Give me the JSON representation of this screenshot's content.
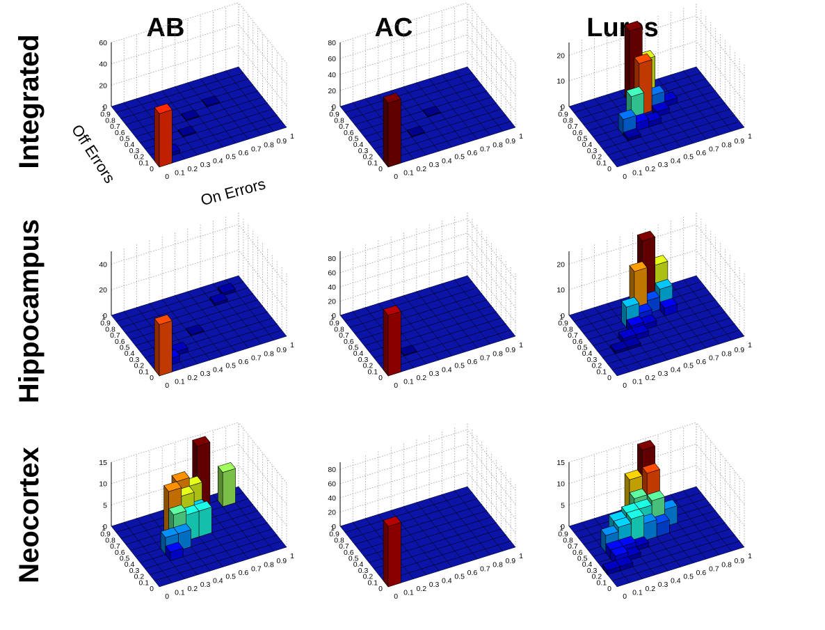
{
  "figure": {
    "column_labels": [
      "AB",
      "AC",
      "Lures"
    ],
    "row_labels": [
      "Integrated",
      "Hippocampus",
      "Neocortex"
    ],
    "x_axis_title": "On Errors",
    "y_axis_title": "Off Errors"
  },
  "chart_data": [
    {
      "type": "bar3d",
      "row": "Integrated",
      "column": "AB",
      "ticks_x": [
        "0",
        "0.1",
        "0.2",
        "0.3",
        "0.4",
        "0.5",
        "0.6",
        "0.7",
        "0.8",
        "0.9",
        "1"
      ],
      "ticks_y": [
        "0",
        "0.1",
        "0.2",
        "0.3",
        "0.4",
        "0.5",
        "0.6",
        "0.7",
        "0.8",
        "0.9",
        "1"
      ],
      "z_ticks": [
        "0",
        "20",
        "40",
        "60"
      ],
      "zlim": [
        0,
        60
      ],
      "bars": [
        {
          "x": 0,
          "y": 0,
          "z": 50
        },
        {
          "x": 1,
          "y": 1,
          "z": 3
        },
        {
          "x": 3,
          "y": 3,
          "z": 1
        },
        {
          "x": 4,
          "y": 5,
          "z": 1
        },
        {
          "x": 6,
          "y": 6,
          "z": 1
        }
      ]
    },
    {
      "type": "bar3d",
      "row": "Integrated",
      "column": "AC",
      "ticks_x": [
        "0",
        "0.1",
        "0.2",
        "0.3",
        "0.4",
        "0.5",
        "0.6",
        "0.7",
        "0.8",
        "0.9",
        "1"
      ],
      "ticks_y": [
        "0",
        "0.1",
        "0.2",
        "0.3",
        "0.4",
        "0.5",
        "0.6",
        "0.7",
        "0.8",
        "0.9",
        "1"
      ],
      "z_ticks": [
        "0",
        "20",
        "40",
        "60",
        "80"
      ],
      "zlim": [
        0,
        80
      ],
      "bars": [
        {
          "x": 0,
          "y": 0,
          "z": 80
        },
        {
          "x": 3,
          "y": 3,
          "z": 1
        },
        {
          "x": 5,
          "y": 5,
          "z": 1
        }
      ]
    },
    {
      "type": "bar3d",
      "row": "Integrated",
      "column": "Lures",
      "ticks_x": [
        "0",
        "0.1",
        "0.2",
        "0.3",
        "0.4",
        "0.5",
        "0.6",
        "0.7",
        "0.8",
        "0.9",
        "1"
      ],
      "ticks_y": [
        "0",
        "0.1",
        "0.2",
        "0.3",
        "0.4",
        "0.5",
        "0.6",
        "0.7",
        "0.8",
        "0.9",
        "1"
      ],
      "z_ticks": [
        "0",
        "10",
        "20"
      ],
      "zlim": [
        0,
        25
      ],
      "bars": [
        {
          "x": 4,
          "y": 8,
          "z": 28
        },
        {
          "x": 4,
          "y": 6,
          "z": 20
        },
        {
          "x": 5,
          "y": 8,
          "z": 15
        },
        {
          "x": 3,
          "y": 5,
          "z": 11
        },
        {
          "x": 5,
          "y": 6,
          "z": 6
        },
        {
          "x": 2,
          "y": 4,
          "z": 6
        },
        {
          "x": 3,
          "y": 4,
          "z": 3
        },
        {
          "x": 4,
          "y": 4,
          "z": 2
        },
        {
          "x": 5,
          "y": 5,
          "z": 2
        },
        {
          "x": 6,
          "y": 6,
          "z": 2
        },
        {
          "x": 2,
          "y": 3,
          "z": 1
        }
      ]
    },
    {
      "type": "bar3d",
      "row": "Hippocampus",
      "column": "AB",
      "ticks_x": [
        "0",
        "0.1",
        "0.2",
        "0.3",
        "0.4",
        "0.5",
        "0.6",
        "0.7",
        "0.8",
        "0.9",
        "1"
      ],
      "ticks_y": [
        "0",
        "0.1",
        "0.2",
        "0.3",
        "0.4",
        "0.5",
        "0.6",
        "0.7",
        "0.8",
        "0.9",
        "1"
      ],
      "z_ticks": [
        "0",
        "20",
        "40"
      ],
      "zlim": [
        0,
        50
      ],
      "bars": [
        {
          "x": 0,
          "y": 0,
          "z": 40
        },
        {
          "x": 1,
          "y": 1,
          "z": 5
        },
        {
          "x": 1,
          "y": 2,
          "z": 3
        },
        {
          "x": 2,
          "y": 2,
          "z": 3
        },
        {
          "x": 4,
          "y": 4,
          "z": 1
        },
        {
          "x": 7,
          "y": 7,
          "z": 2
        },
        {
          "x": 8,
          "y": 8,
          "z": 2
        }
      ]
    },
    {
      "type": "bar3d",
      "row": "Hippocampus",
      "column": "AC",
      "ticks_x": [
        "0",
        "0.1",
        "0.2",
        "0.3",
        "0.4",
        "0.5",
        "0.6",
        "0.7",
        "0.8",
        "0.9",
        "1"
      ],
      "ticks_y": [
        "0",
        "0.1",
        "0.2",
        "0.3",
        "0.4",
        "0.5",
        "0.6",
        "0.7",
        "0.8",
        "0.9",
        "1"
      ],
      "z_ticks": [
        "0",
        "20",
        "40",
        "60",
        "80"
      ],
      "zlim": [
        0,
        90
      ],
      "bars": [
        {
          "x": 0,
          "y": 0,
          "z": 85
        },
        {
          "x": 2,
          "y": 2,
          "z": 1
        }
      ]
    },
    {
      "type": "bar3d",
      "row": "Hippocampus",
      "column": "Lures",
      "ticks_x": [
        "0",
        "0.1",
        "0.2",
        "0.3",
        "0.4",
        "0.5",
        "0.6",
        "0.7",
        "0.8",
        "0.9",
        "1"
      ],
      "ticks_y": [
        "0",
        "0.1",
        "0.2",
        "0.3",
        "0.4",
        "0.5",
        "0.6",
        "0.7",
        "0.8",
        "0.9",
        "1"
      ],
      "z_ticks": [
        "0",
        "10",
        "20"
      ],
      "zlim": [
        0,
        25
      ],
      "bars": [
        {
          "x": 5,
          "y": 8,
          "z": 26
        },
        {
          "x": 4,
          "y": 7,
          "z": 18
        },
        {
          "x": 6,
          "y": 8,
          "z": 15
        },
        {
          "x": 3,
          "y": 6,
          "z": 8
        },
        {
          "x": 6,
          "y": 7,
          "z": 8
        },
        {
          "x": 4,
          "y": 6,
          "z": 4
        },
        {
          "x": 5,
          "y": 7,
          "z": 5
        },
        {
          "x": 3,
          "y": 5,
          "z": 3
        },
        {
          "x": 4,
          "y": 5,
          "z": 2
        },
        {
          "x": 2,
          "y": 4,
          "z": 2
        },
        {
          "x": 3,
          "y": 4,
          "z": 2
        },
        {
          "x": 6,
          "y": 6,
          "z": 3
        },
        {
          "x": 1,
          "y": 3,
          "z": 1
        },
        {
          "x": 2,
          "y": 3,
          "z": 1
        }
      ]
    },
    {
      "type": "bar3d",
      "row": "Neocortex",
      "column": "AB",
      "ticks_x": [
        "0",
        "0.1",
        "0.2",
        "0.3",
        "0.4",
        "0.5",
        "0.6",
        "0.7",
        "0.8",
        "0.9",
        "1"
      ],
      "ticks_y": [
        "0",
        "0.1",
        "0.2",
        "0.3",
        "0.4",
        "0.5",
        "0.6",
        "0.7",
        "0.8",
        "0.9",
        "1"
      ],
      "z_ticks": [
        "0",
        "5",
        "10",
        "15"
      ],
      "zlim": [
        0,
        15
      ],
      "bars": [
        {
          "x": 6,
          "y": 8,
          "z": 16
        },
        {
          "x": 3,
          "y": 6,
          "z": 11
        },
        {
          "x": 4,
          "y": 6,
          "z": 9
        },
        {
          "x": 5,
          "y": 7,
          "z": 9
        },
        {
          "x": 8,
          "y": 8,
          "z": 8
        },
        {
          "x": 4,
          "y": 7,
          "z": 11
        },
        {
          "x": 3,
          "y": 5,
          "z": 7
        },
        {
          "x": 4,
          "y": 5,
          "z": 6
        },
        {
          "x": 5,
          "y": 5,
          "z": 6
        },
        {
          "x": 2,
          "y": 4,
          "z": 4
        },
        {
          "x": 3,
          "y": 4,
          "z": 4
        },
        {
          "x": 5,
          "y": 6,
          "z": 5
        },
        {
          "x": 2,
          "y": 3,
          "z": 2
        }
      ]
    },
    {
      "type": "bar3d",
      "row": "Neocortex",
      "column": "AC",
      "ticks_x": [
        "0",
        "0.1",
        "0.2",
        "0.3",
        "0.4",
        "0.5",
        "0.6",
        "0.7",
        "0.8",
        "0.9",
        "1"
      ],
      "ticks_y": [
        "0",
        "0.1",
        "0.2",
        "0.3",
        "0.4",
        "0.5",
        "0.6",
        "0.7",
        "0.8",
        "0.9",
        "1"
      ],
      "z_ticks": [
        "0",
        "20",
        "40",
        "60",
        "80"
      ],
      "zlim": [
        0,
        90
      ],
      "bars": [
        {
          "x": 0,
          "y": 0,
          "z": 85
        }
      ]
    },
    {
      "type": "bar3d",
      "row": "Neocortex",
      "column": "Lures",
      "ticks_x": [
        "0",
        "0.1",
        "0.2",
        "0.3",
        "0.4",
        "0.5",
        "0.6",
        "0.7",
        "0.8",
        "0.9",
        "1"
      ],
      "ticks_y": [
        "0",
        "0.1",
        "0.2",
        "0.3",
        "0.4",
        "0.5",
        "0.6",
        "0.7",
        "0.8",
        "0.9",
        "1"
      ],
      "z_ticks": [
        "0",
        "5",
        "10",
        "15"
      ],
      "zlim": [
        0,
        15
      ],
      "bars": [
        {
          "x": 5,
          "y": 8,
          "z": 16
        },
        {
          "x": 5,
          "y": 7,
          "z": 12
        },
        {
          "x": 4,
          "y": 8,
          "z": 10
        },
        {
          "x": 4,
          "y": 7,
          "z": 7
        },
        {
          "x": 5,
          "y": 6,
          "z": 7
        },
        {
          "x": 3,
          "y": 6,
          "z": 6
        },
        {
          "x": 2,
          "y": 6,
          "z": 5
        },
        {
          "x": 4,
          "y": 6,
          "z": 6
        },
        {
          "x": 6,
          "y": 6,
          "z": 4
        },
        {
          "x": 1,
          "y": 5,
          "z": 4
        },
        {
          "x": 2,
          "y": 5,
          "z": 5
        },
        {
          "x": 3,
          "y": 5,
          "z": 6
        },
        {
          "x": 4,
          "y": 5,
          "z": 4
        },
        {
          "x": 5,
          "y": 5,
          "z": 3
        },
        {
          "x": 1,
          "y": 4,
          "z": 2
        },
        {
          "x": 2,
          "y": 4,
          "z": 2
        },
        {
          "x": 3,
          "y": 4,
          "z": 1
        },
        {
          "x": 1,
          "y": 3,
          "z": 2
        },
        {
          "x": 2,
          "y": 3,
          "z": 1
        },
        {
          "x": 0,
          "y": 2,
          "z": 1
        },
        {
          "x": 1,
          "y": 2,
          "z": 1
        }
      ]
    }
  ]
}
